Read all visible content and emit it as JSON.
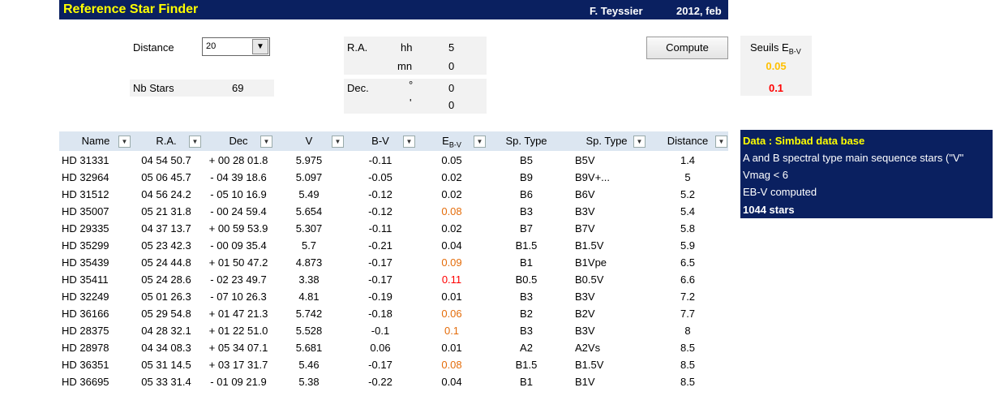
{
  "header": {
    "title": "Reference Star Finder",
    "author": "F. Teyssier",
    "date": "2012, feb"
  },
  "form": {
    "distance_label": "Distance",
    "distance_value": "20",
    "nb_stars_label": "Nb Stars",
    "nb_stars_value": "69",
    "ra_label": "R.A.",
    "ra_hh_label": "hh",
    "ra_hh": "5",
    "ra_mn_label": "mn",
    "ra_mn": "0",
    "dec_label": "Dec.",
    "dec_deg_label": "°",
    "dec_deg": "0",
    "dec_min_label": "'",
    "dec_min": "0",
    "button": "Compute"
  },
  "seuils": {
    "label": "Seuils E",
    "sub": "B-V",
    "values": [
      "0.05",
      "0.1"
    ],
    "colors": [
      "#ffc000",
      "#ff0000"
    ],
    "flag_colors": [
      "#e46c0a",
      "#ff0000"
    ]
  },
  "table": {
    "columns": [
      {
        "text": "Name"
      },
      {
        "text": "R.A."
      },
      {
        "text": "Dec"
      },
      {
        "text": "V"
      },
      {
        "text": "B-V"
      },
      {
        "text": "E",
        "sub": "B-V"
      },
      {
        "text": "Sp. Type"
      },
      {
        "text": "Sp. Type"
      },
      {
        "text": "Distance"
      }
    ],
    "rows": [
      [
        "HD 31331",
        "04 54 50.7",
        "+ 00 28 01.8",
        "5.975",
        "-0.11",
        "0.05",
        "B5",
        "B5V",
        "1.4"
      ],
      [
        "HD 32964",
        "05 06 45.7",
        "- 04 39 18.6",
        "5.097",
        "-0.05",
        "0.02",
        "B9",
        "B9V+...",
        "5"
      ],
      [
        "HD 31512",
        "04 56 24.2",
        "- 05 10 16.9",
        "5.49",
        "-0.12",
        "0.02",
        "B6",
        "B6V",
        "5.2"
      ],
      [
        "HD 35007",
        "05 21 31.8",
        "- 00 24 59.4",
        "5.654",
        "-0.12",
        "0.08",
        "B3",
        "B3V",
        "5.4"
      ],
      [
        "HD 29335",
        "04 37 13.7",
        "+ 00 59 53.9",
        "5.307",
        "-0.11",
        "0.02",
        "B7",
        "B7V",
        "5.8"
      ],
      [
        "HD 35299",
        "05 23 42.3",
        "- 00 09 35.4",
        "5.7",
        "-0.21",
        "0.04",
        "B1.5",
        "B1.5V",
        "5.9"
      ],
      [
        "HD 35439",
        "05 24 44.8",
        "+ 01 50 47.2",
        "4.873",
        "-0.17",
        "0.09",
        "B1",
        "B1Vpe",
        "6.5"
      ],
      [
        "HD 35411",
        "05 24 28.6",
        "- 02 23 49.7",
        "3.38",
        "-0.17",
        "0.11",
        "B0.5",
        "B0.5V",
        "6.6"
      ],
      [
        "HD 32249",
        "05 01 26.3",
        "- 07 10 26.3",
        "4.81",
        "-0.19",
        "0.01",
        "B3",
        "B3V",
        "7.2"
      ],
      [
        "HD 36166",
        "05 29 54.8",
        "+ 01 47 21.3",
        "5.742",
        "-0.18",
        "0.06",
        "B2",
        "B2V",
        "7.7"
      ],
      [
        "HD 28375",
        "04 28 32.1",
        "+ 01 22 51.0",
        "5.528",
        "-0.1",
        "0.1",
        "B3",
        "B3V",
        "8"
      ],
      [
        "HD 28978",
        "04 34 08.3",
        "+ 05 34 07.1",
        "5.681",
        "0.06",
        "0.01",
        "A2",
        "A2Vs",
        "8.5"
      ],
      [
        "HD 36351",
        "05 31 14.5",
        "+ 03 17 31.7",
        "5.46",
        "-0.17",
        "0.08",
        "B1.5",
        "B1.5V",
        "8.5"
      ],
      [
        "HD 36695",
        "05 33 31.4",
        "- 01 09 21.9",
        "5.38",
        "-0.22",
        "0.04",
        "B1",
        "B1V",
        "8.5"
      ]
    ]
  },
  "info": {
    "title": "Data : Simbad data base",
    "lines": [
      "A and B spectral type main sequence stars  (\"V\"",
      "Vmag < 6",
      "EB-V computed"
    ],
    "count": "1044 stars"
  }
}
